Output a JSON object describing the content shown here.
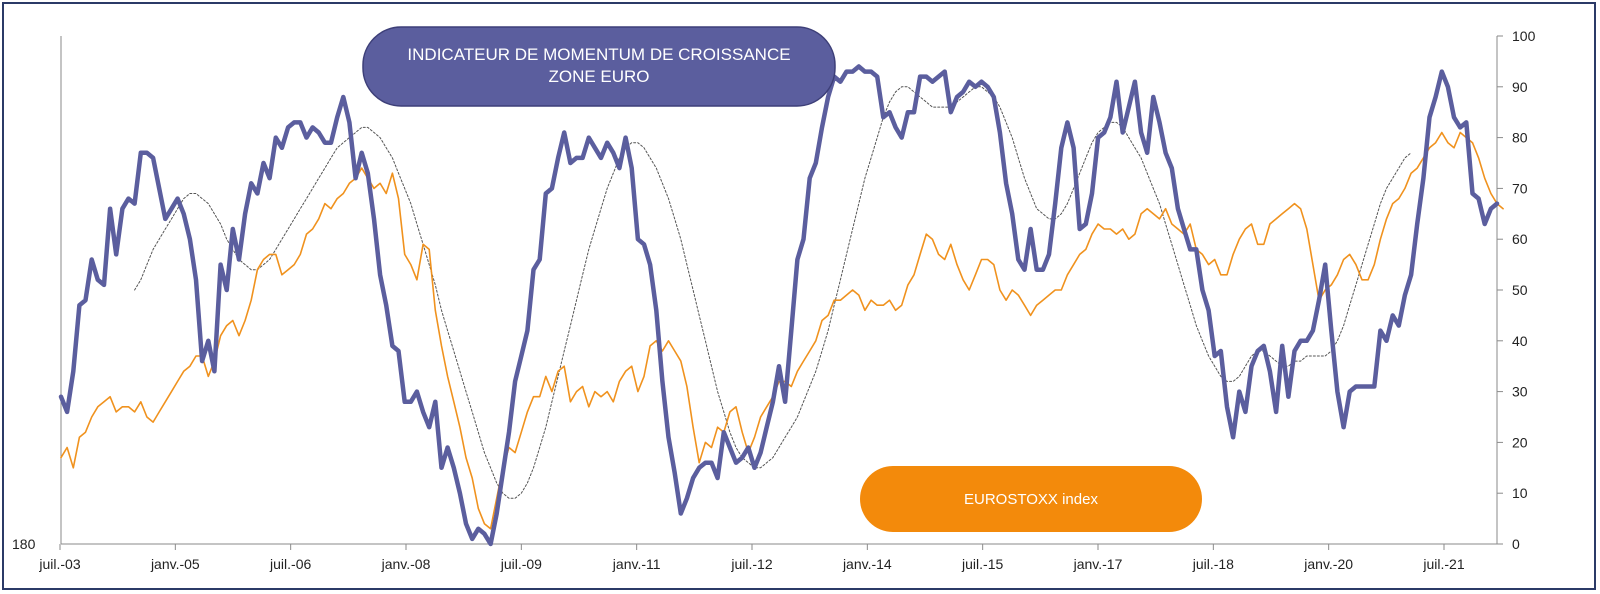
{
  "chart_data": {
    "type": "line",
    "title": "INDICATEUR DE MOMENTUM DE CROISSANCE ZONE EURO",
    "title_lines": [
      "INDICATEUR DE MOMENTUM DE CROISSANCE",
      "ZONE EURO"
    ],
    "eurostoxx_label": "EUROSTOXX index",
    "left_axis_label_bottom": "180",
    "y_right_ticks": [
      "0",
      "10",
      "20",
      "30",
      "40",
      "50",
      "60",
      "70",
      "80",
      "90",
      "100"
    ],
    "ylim_right": [
      0,
      100
    ],
    "x_ticks": [
      "juil.-03",
      "janv.-05",
      "juil.-06",
      "janv.-08",
      "juil.-09",
      "janv.-11",
      "juil.-12",
      "janv.-14",
      "juil.-15",
      "janv.-17",
      "juil.-18",
      "janv.-20",
      "juil.-21"
    ],
    "grid": false,
    "colors": {
      "momentum": "#5b5e9e",
      "eurostoxx": "#f0921e",
      "smoothed": "#555555",
      "title_box": "#5b5e9e",
      "eurostoxx_box": "#f38a0b"
    },
    "series": [
      {
        "key": "momentum",
        "values": [
          29,
          26,
          34,
          47,
          48,
          56,
          52,
          51,
          66,
          57,
          66,
          68,
          67,
          77,
          77,
          76,
          70,
          64,
          66,
          68,
          65,
          60,
          52,
          36,
          40,
          34,
          55,
          50,
          62,
          56,
          65,
          71,
          69,
          75,
          72,
          80,
          78,
          82,
          83,
          83,
          80,
          82,
          81,
          79,
          79,
          84,
          88,
          83,
          72,
          77,
          73,
          64,
          53,
          47,
          39,
          38,
          28,
          28,
          30,
          26,
          23,
          28,
          15,
          19,
          15,
          10,
          4,
          1,
          3,
          2,
          0,
          6,
          14,
          22,
          32,
          37,
          42,
          54,
          56,
          69,
          70,
          76,
          81,
          75,
          76,
          76,
          80,
          78,
          76,
          79,
          77,
          74,
          80,
          74,
          60,
          59,
          55,
          46,
          32,
          21,
          14,
          6,
          9,
          13,
          15,
          16,
          16,
          13,
          22,
          19,
          16,
          17,
          19,
          15,
          18,
          23,
          28,
          35,
          28,
          42,
          56,
          60,
          72,
          75,
          82,
          88,
          92,
          91,
          93,
          93,
          94,
          93,
          93,
          92,
          84,
          85,
          82,
          80,
          85,
          85,
          92,
          92,
          91,
          92,
          93,
          85,
          88,
          89,
          91,
          90,
          91,
          90,
          88,
          81,
          71,
          65,
          56,
          54,
          62,
          54,
          54,
          57,
          67,
          78,
          83,
          78,
          62,
          63,
          69,
          80,
          81,
          84,
          91,
          81,
          86,
          91,
          81,
          77,
          88,
          83,
          77,
          74,
          66,
          62,
          58,
          58,
          50,
          46,
          37,
          38,
          27,
          21,
          30,
          26,
          35,
          38,
          39,
          34,
          26,
          39,
          29,
          38,
          40,
          40,
          42,
          48,
          55,
          42,
          30,
          23,
          30,
          31,
          31,
          31,
          31,
          42,
          40,
          45,
          43,
          49,
          53,
          63,
          72,
          84,
          88,
          93,
          90,
          84,
          82,
          83,
          69,
          68,
          63,
          66,
          67
        ]
      },
      {
        "key": "eurostoxx",
        "values": [
          17,
          19,
          15,
          21,
          22,
          25,
          27,
          28,
          29,
          26,
          27,
          27,
          26,
          28,
          25,
          24,
          26,
          28,
          30,
          32,
          34,
          35,
          37,
          37,
          33,
          36,
          41,
          43,
          44,
          41,
          44,
          48,
          54,
          56,
          57,
          57,
          53,
          54,
          55,
          57,
          61,
          62,
          64,
          67,
          66,
          68,
          69,
          71,
          72,
          74,
          72,
          70,
          71,
          69,
          73,
          68,
          57,
          55,
          52,
          59,
          58,
          46,
          39,
          33,
          28,
          23,
          17,
          13,
          7,
          4,
          3,
          9,
          15,
          19,
          18,
          22,
          26,
          29,
          29,
          33,
          30,
          34,
          35,
          28,
          30,
          31,
          27,
          30,
          29,
          30,
          28,
          32,
          34,
          35,
          30,
          33,
          39,
          40,
          38,
          40,
          38,
          36,
          31,
          23,
          16,
          20,
          19,
          23,
          22,
          26,
          27,
          22,
          18,
          21,
          25,
          27,
          29,
          32,
          32,
          31,
          34,
          36,
          38,
          40,
          44,
          45,
          48,
          48,
          49,
          50,
          49,
          46,
          48,
          47,
          47,
          48,
          46,
          47,
          51,
          53,
          57,
          61,
          60,
          57,
          56,
          59,
          55,
          52,
          50,
          53,
          56,
          56,
          55,
          50,
          48,
          50,
          49,
          47,
          45,
          47,
          48,
          49,
          50,
          50,
          53,
          55,
          57,
          58,
          61,
          63,
          62,
          62,
          61,
          62,
          60,
          61,
          65,
          66,
          65,
          64,
          66,
          63,
          62,
          61,
          63,
          58,
          57,
          55,
          56,
          53,
          53,
          57,
          60,
          62,
          63,
          59,
          59,
          63,
          64,
          65,
          66,
          67,
          66,
          62,
          55,
          48,
          50,
          51,
          53,
          56,
          57,
          55,
          52,
          52,
          55,
          60,
          64,
          67,
          68,
          70,
          73,
          74,
          76,
          78,
          79,
          81,
          79,
          78,
          81,
          80,
          79,
          76,
          72,
          69,
          67,
          66
        ]
      },
      {
        "key": "smoothed",
        "start_index": 12,
        "values": [
          50,
          52,
          55,
          58,
          60,
          62,
          64,
          66,
          68,
          69,
          69,
          68,
          67,
          65,
          63,
          60,
          58,
          56,
          55,
          54,
          54,
          55,
          56,
          58,
          60,
          62,
          64,
          66,
          68,
          70,
          72,
          74,
          76,
          78,
          79,
          80,
          81,
          82,
          82,
          81,
          80,
          78,
          76,
          73,
          70,
          67,
          63,
          59,
          55,
          51,
          46,
          42,
          38,
          34,
          30,
          26,
          22,
          18,
          15,
          12,
          10,
          9,
          9,
          10,
          12,
          15,
          19,
          23,
          28,
          33,
          38,
          43,
          48,
          53,
          58,
          62,
          66,
          70,
          73,
          76,
          78,
          79,
          79,
          78,
          76,
          74,
          71,
          68,
          64,
          60,
          55,
          50,
          45,
          40,
          35,
          30,
          26,
          22,
          19,
          17,
          16,
          15,
          15,
          16,
          17,
          19,
          21,
          23,
          25,
          28,
          31,
          34,
          38,
          42,
          47,
          52,
          57,
          62,
          67,
          72,
          76,
          80,
          84,
          87,
          89,
          90,
          90,
          89,
          88,
          87,
          86,
          86,
          86,
          86,
          87,
          88,
          89,
          90,
          90,
          89,
          88,
          86,
          83,
          80,
          76,
          72,
          69,
          66,
          65,
          64,
          64,
          65,
          67,
          70,
          73,
          76,
          79,
          81,
          82,
          83,
          83,
          82,
          80,
          78,
          76,
          73,
          70,
          67,
          63,
          59,
          55,
          51,
          47,
          43,
          40,
          37,
          35,
          33,
          32,
          32,
          33,
          35,
          37,
          38,
          38,
          37,
          36,
          35,
          35,
          36,
          36,
          37,
          37,
          37,
          37,
          38,
          40,
          43,
          47,
          51,
          55,
          59,
          63,
          67,
          70,
          72,
          74,
          76,
          77
        ]
      }
    ]
  }
}
